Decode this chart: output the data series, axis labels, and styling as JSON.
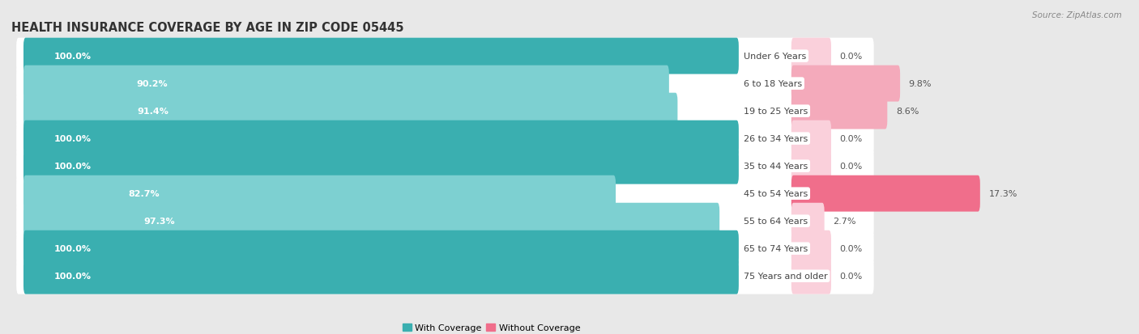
{
  "title": "HEALTH INSURANCE COVERAGE BY AGE IN ZIP CODE 05445",
  "source": "Source: ZipAtlas.com",
  "categories": [
    "Under 6 Years",
    "6 to 18 Years",
    "19 to 25 Years",
    "26 to 34 Years",
    "35 to 44 Years",
    "45 to 54 Years",
    "55 to 64 Years",
    "65 to 74 Years",
    "75 Years and older"
  ],
  "with_coverage": [
    100.0,
    90.2,
    91.4,
    100.0,
    100.0,
    82.7,
    97.3,
    100.0,
    100.0
  ],
  "without_coverage": [
    0.0,
    9.8,
    8.6,
    0.0,
    0.0,
    17.3,
    2.7,
    0.0,
    0.0
  ],
  "color_with_dark": "#3AAFB0",
  "color_with_light": "#7DD0D1",
  "color_without_strong": "#F06E8B",
  "color_without_light": "#F4AABB",
  "color_without_vlight": "#FAD0DB",
  "bg_color": "#e8e8e8",
  "bar_bg": "#f5f5f5",
  "title_fontsize": 10.5,
  "bar_label_fontsize": 8,
  "cat_label_fontsize": 8,
  "legend_fontsize": 8,
  "source_fontsize": 7.5,
  "axis_label_fontsize": 7.5
}
